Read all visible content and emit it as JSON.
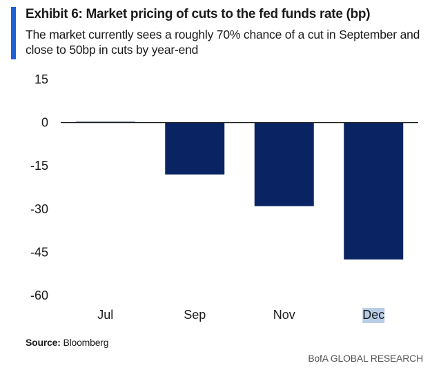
{
  "header": {
    "title": "Exhibit 6: Market pricing of cuts to the fed funds rate (bp)",
    "subtitle": "The market currently sees a roughly 70% chance of a cut in September and close to 50bp in cuts by year-end"
  },
  "footer": {
    "source_label": "Source:",
    "source_value": "Bloomberg",
    "brand": "BofA GLOBAL RESEARCH"
  },
  "colors": {
    "bar": "#0a2463",
    "accent": "#1f5fd6",
    "highlight": "#b9cde6"
  },
  "chart_data": {
    "type": "bar",
    "title": "Exhibit 6: Market pricing of cuts to the fed funds rate (bp)",
    "xlabel": "",
    "ylabel": "",
    "categories": [
      "Jul",
      "Sep",
      "Nov",
      "Dec"
    ],
    "values": [
      0.3,
      -18,
      -29,
      -47.5
    ],
    "ylim": [
      -60,
      15
    ],
    "yticks": [
      15,
      0,
      -15,
      -30,
      -45,
      -60
    ],
    "grid": false,
    "legend": "none"
  }
}
